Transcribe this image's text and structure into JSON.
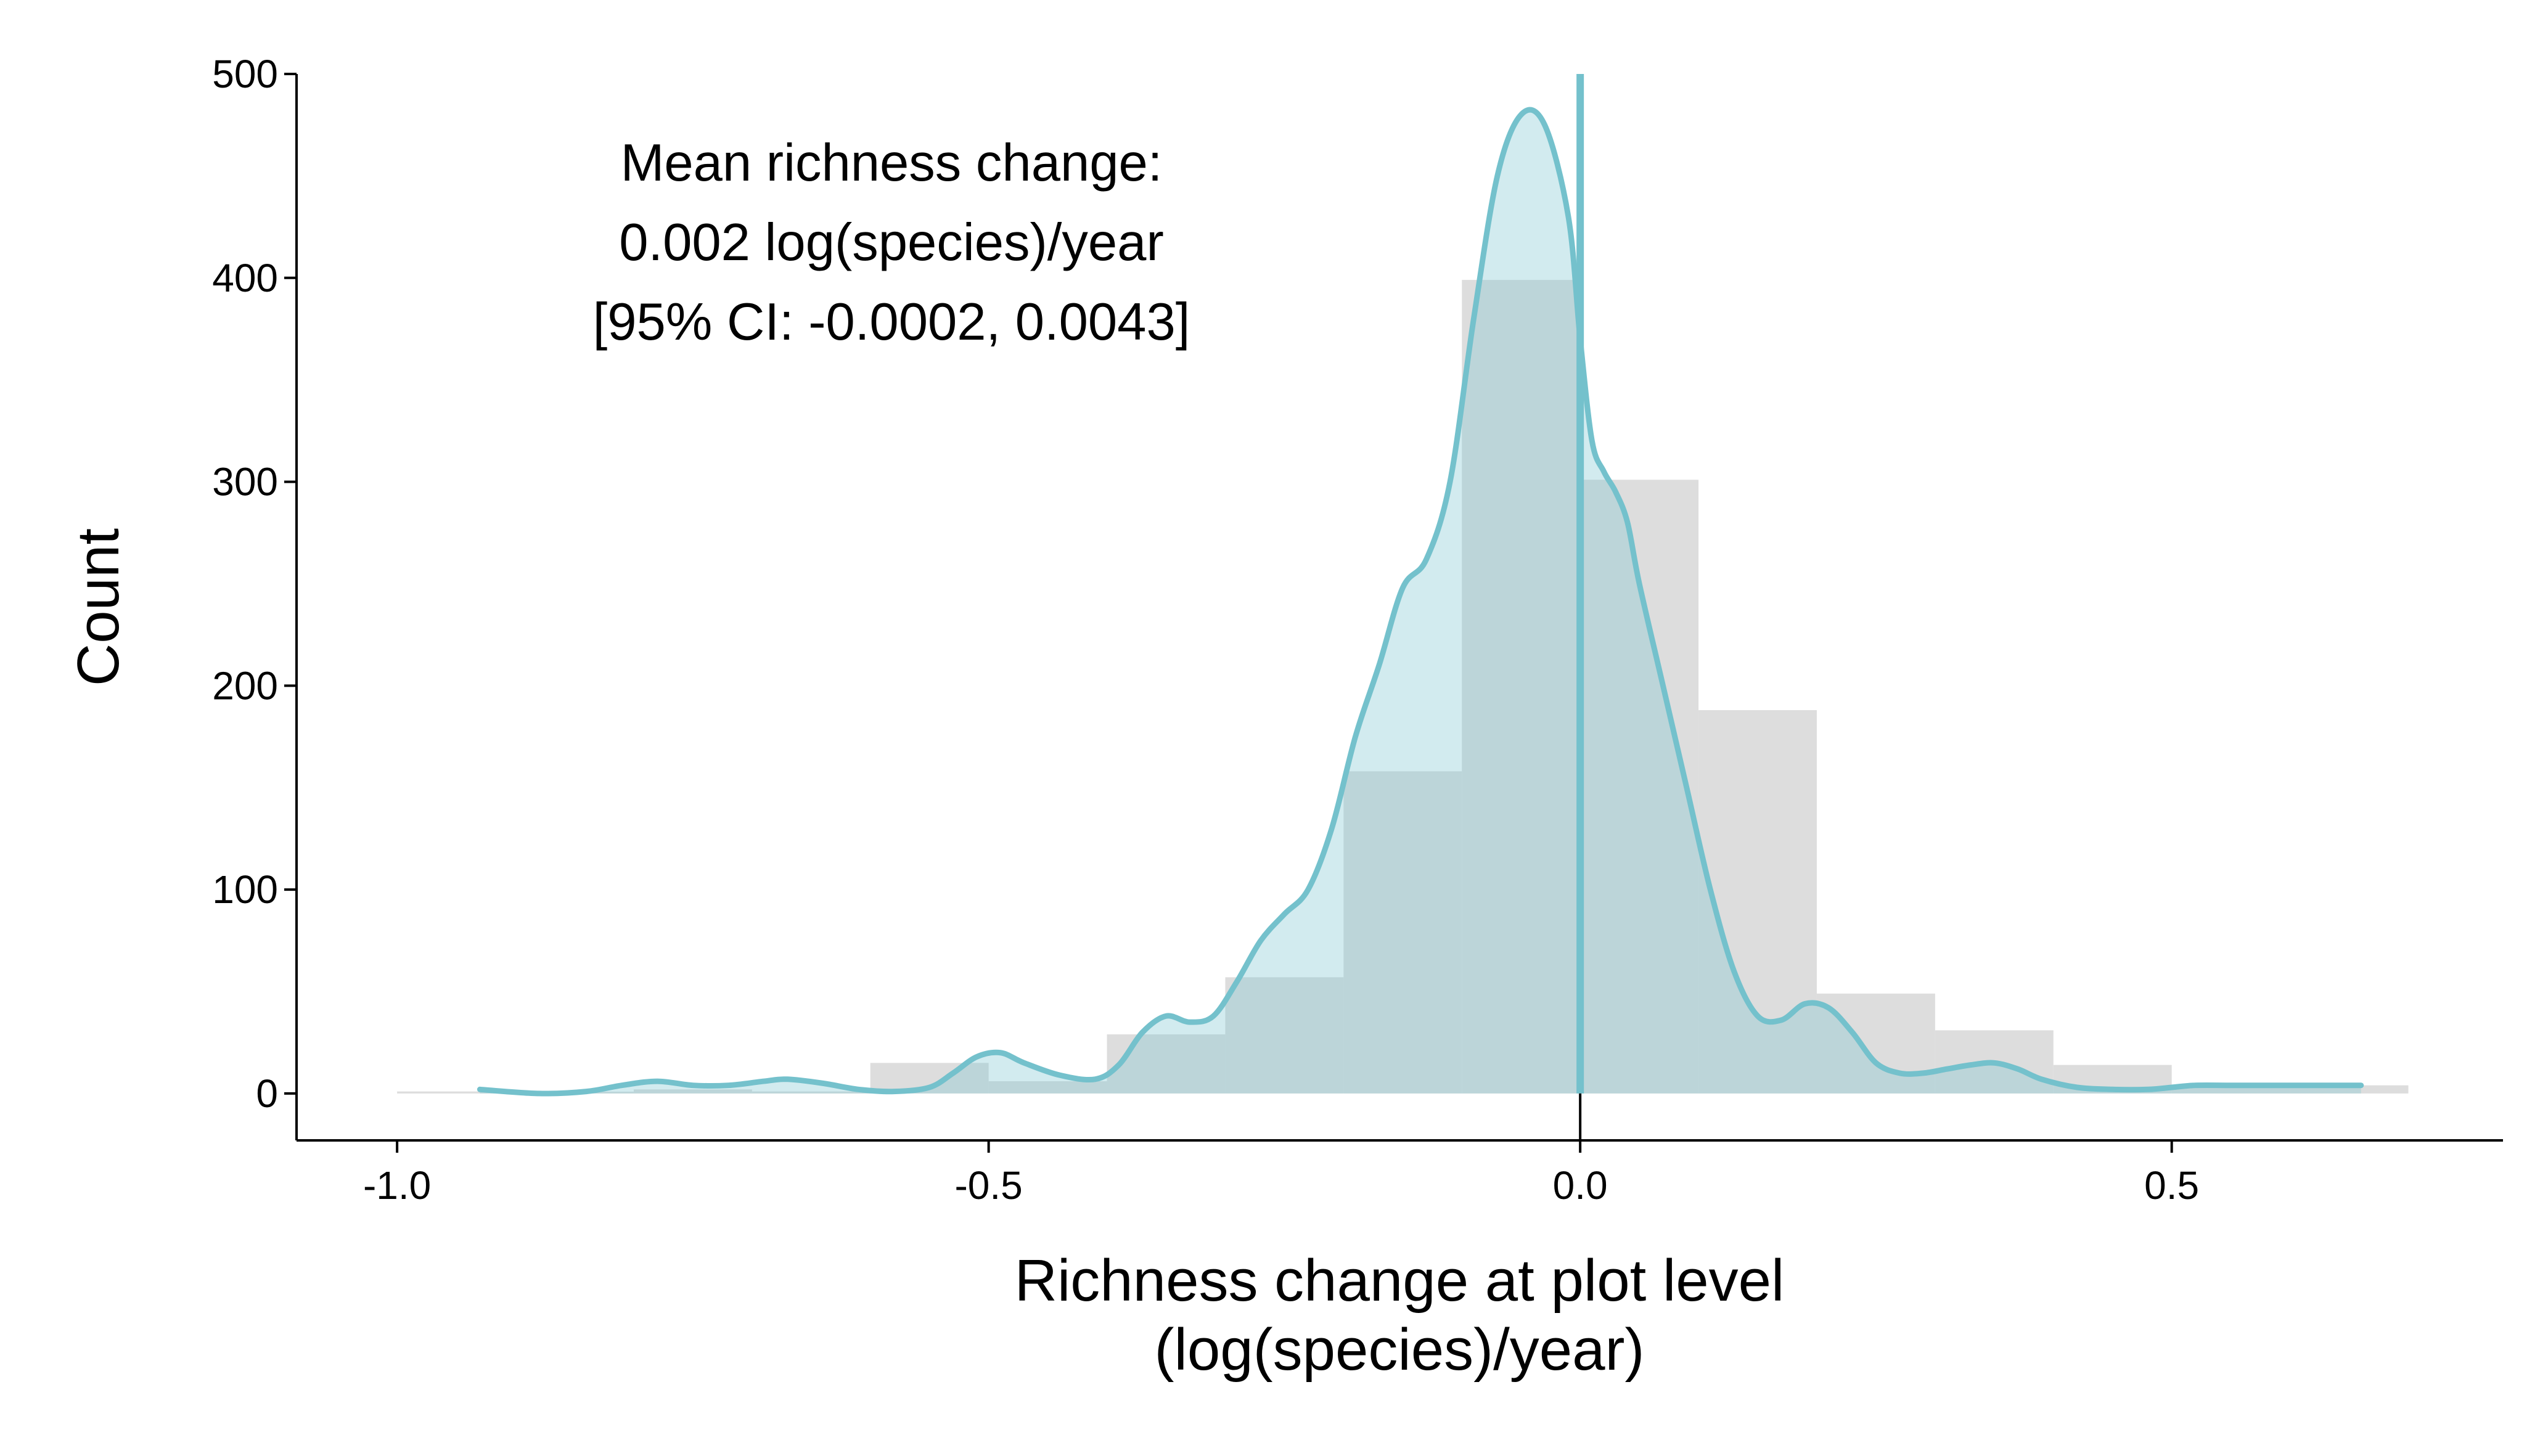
{
  "chart_data": {
    "type": "histogram",
    "bins": [
      {
        "x0": -1.0,
        "x1": -0.9,
        "count": 1
      },
      {
        "x0": -0.9,
        "x1": -0.8,
        "count": 0
      },
      {
        "x0": -0.8,
        "x1": -0.7,
        "count": 2
      },
      {
        "x0": -0.7,
        "x1": -0.6,
        "count": 1
      },
      {
        "x0": -0.6,
        "x1": -0.5,
        "count": 15
      },
      {
        "x0": -0.5,
        "x1": -0.4,
        "count": 6
      },
      {
        "x0": -0.4,
        "x1": -0.3,
        "count": 29
      },
      {
        "x0": -0.3,
        "x1": -0.2,
        "count": 57
      },
      {
        "x0": -0.2,
        "x1": -0.1,
        "count": 158
      },
      {
        "x0": -0.1,
        "x1": 0.0,
        "count": 399
      },
      {
        "x0": 0.0,
        "x1": 0.1,
        "count": 301
      },
      {
        "x0": 0.1,
        "x1": 0.2,
        "count": 188
      },
      {
        "x0": 0.2,
        "x1": 0.3,
        "count": 49
      },
      {
        "x0": 0.3,
        "x1": 0.4,
        "count": 31
      },
      {
        "x0": 0.4,
        "x1": 0.5,
        "count": 14
      },
      {
        "x0": 0.5,
        "x1": 0.6,
        "count": 3
      },
      {
        "x0": 0.6,
        "x1": 0.7,
        "count": 4
      }
    ],
    "density_curve": {
      "x": [
        -0.93,
        -0.88,
        -0.84,
        -0.81,
        -0.78,
        -0.75,
        -0.72,
        -0.69,
        -0.67,
        -0.64,
        -0.61,
        -0.58,
        -0.55,
        -0.53,
        -0.51,
        -0.49,
        -0.47,
        -0.44,
        -0.41,
        -0.39,
        -0.37,
        -0.35,
        -0.33,
        -0.31,
        -0.29,
        -0.27,
        -0.25,
        -0.23,
        -0.21,
        -0.19,
        -0.17,
        -0.15,
        -0.13,
        -0.11,
        -0.09,
        -0.07,
        -0.05,
        -0.03,
        -0.01,
        0.0,
        0.01,
        0.02,
        0.03,
        0.04,
        0.05,
        0.07,
        0.09,
        0.11,
        0.13,
        0.15,
        0.17,
        0.19,
        0.21,
        0.23,
        0.25,
        0.27,
        0.29,
        0.31,
        0.33,
        0.35,
        0.37,
        0.39,
        0.42,
        0.45,
        0.48,
        0.5,
        0.52,
        0.55,
        0.58,
        0.62,
        0.66
      ],
      "y": [
        2,
        0,
        1,
        4,
        6,
        4,
        4,
        6,
        7,
        5,
        2,
        1,
        3,
        10,
        18,
        20,
        15,
        9,
        7,
        14,
        30,
        38,
        35,
        38,
        55,
        75,
        88,
        100,
        130,
        175,
        210,
        248,
        262,
        300,
        380,
        450,
        480,
        475,
        430,
        370,
        320,
        305,
        295,
        280,
        250,
        200,
        150,
        100,
        60,
        38,
        36,
        44,
        42,
        30,
        15,
        10,
        10,
        12,
        14,
        15,
        12,
        7,
        3,
        2,
        2,
        3,
        4,
        4,
        4,
        4,
        4
      ]
    },
    "vline_x": 0.0,
    "xlim": [
      -1.085,
      0.78
    ],
    "ylim": [
      -23,
      500
    ],
    "xticks": [
      -1.0,
      -0.5,
      0.0,
      0.5
    ],
    "yticks": [
      0,
      100,
      200,
      300,
      400,
      500
    ],
    "xtick_labels": [
      "-1.0",
      "-0.5",
      "0.0",
      "0.5"
    ],
    "ytick_labels": [
      "0",
      "100",
      "200",
      "300",
      "400",
      "500"
    ],
    "xlabel": [
      "Richness change at plot level",
      "(log(species)/year)"
    ],
    "ylabel": "Count",
    "annotation": [
      "Mean richness change:",
      "0.002 log(species)/year",
      "[95% CI: -0.0002, 0.0043]"
    ],
    "colors": {
      "bar": "#dddddd",
      "density_fill": "#7fc6d1",
      "density_line": "#74c1cc",
      "vline": "#74c1cc"
    }
  }
}
